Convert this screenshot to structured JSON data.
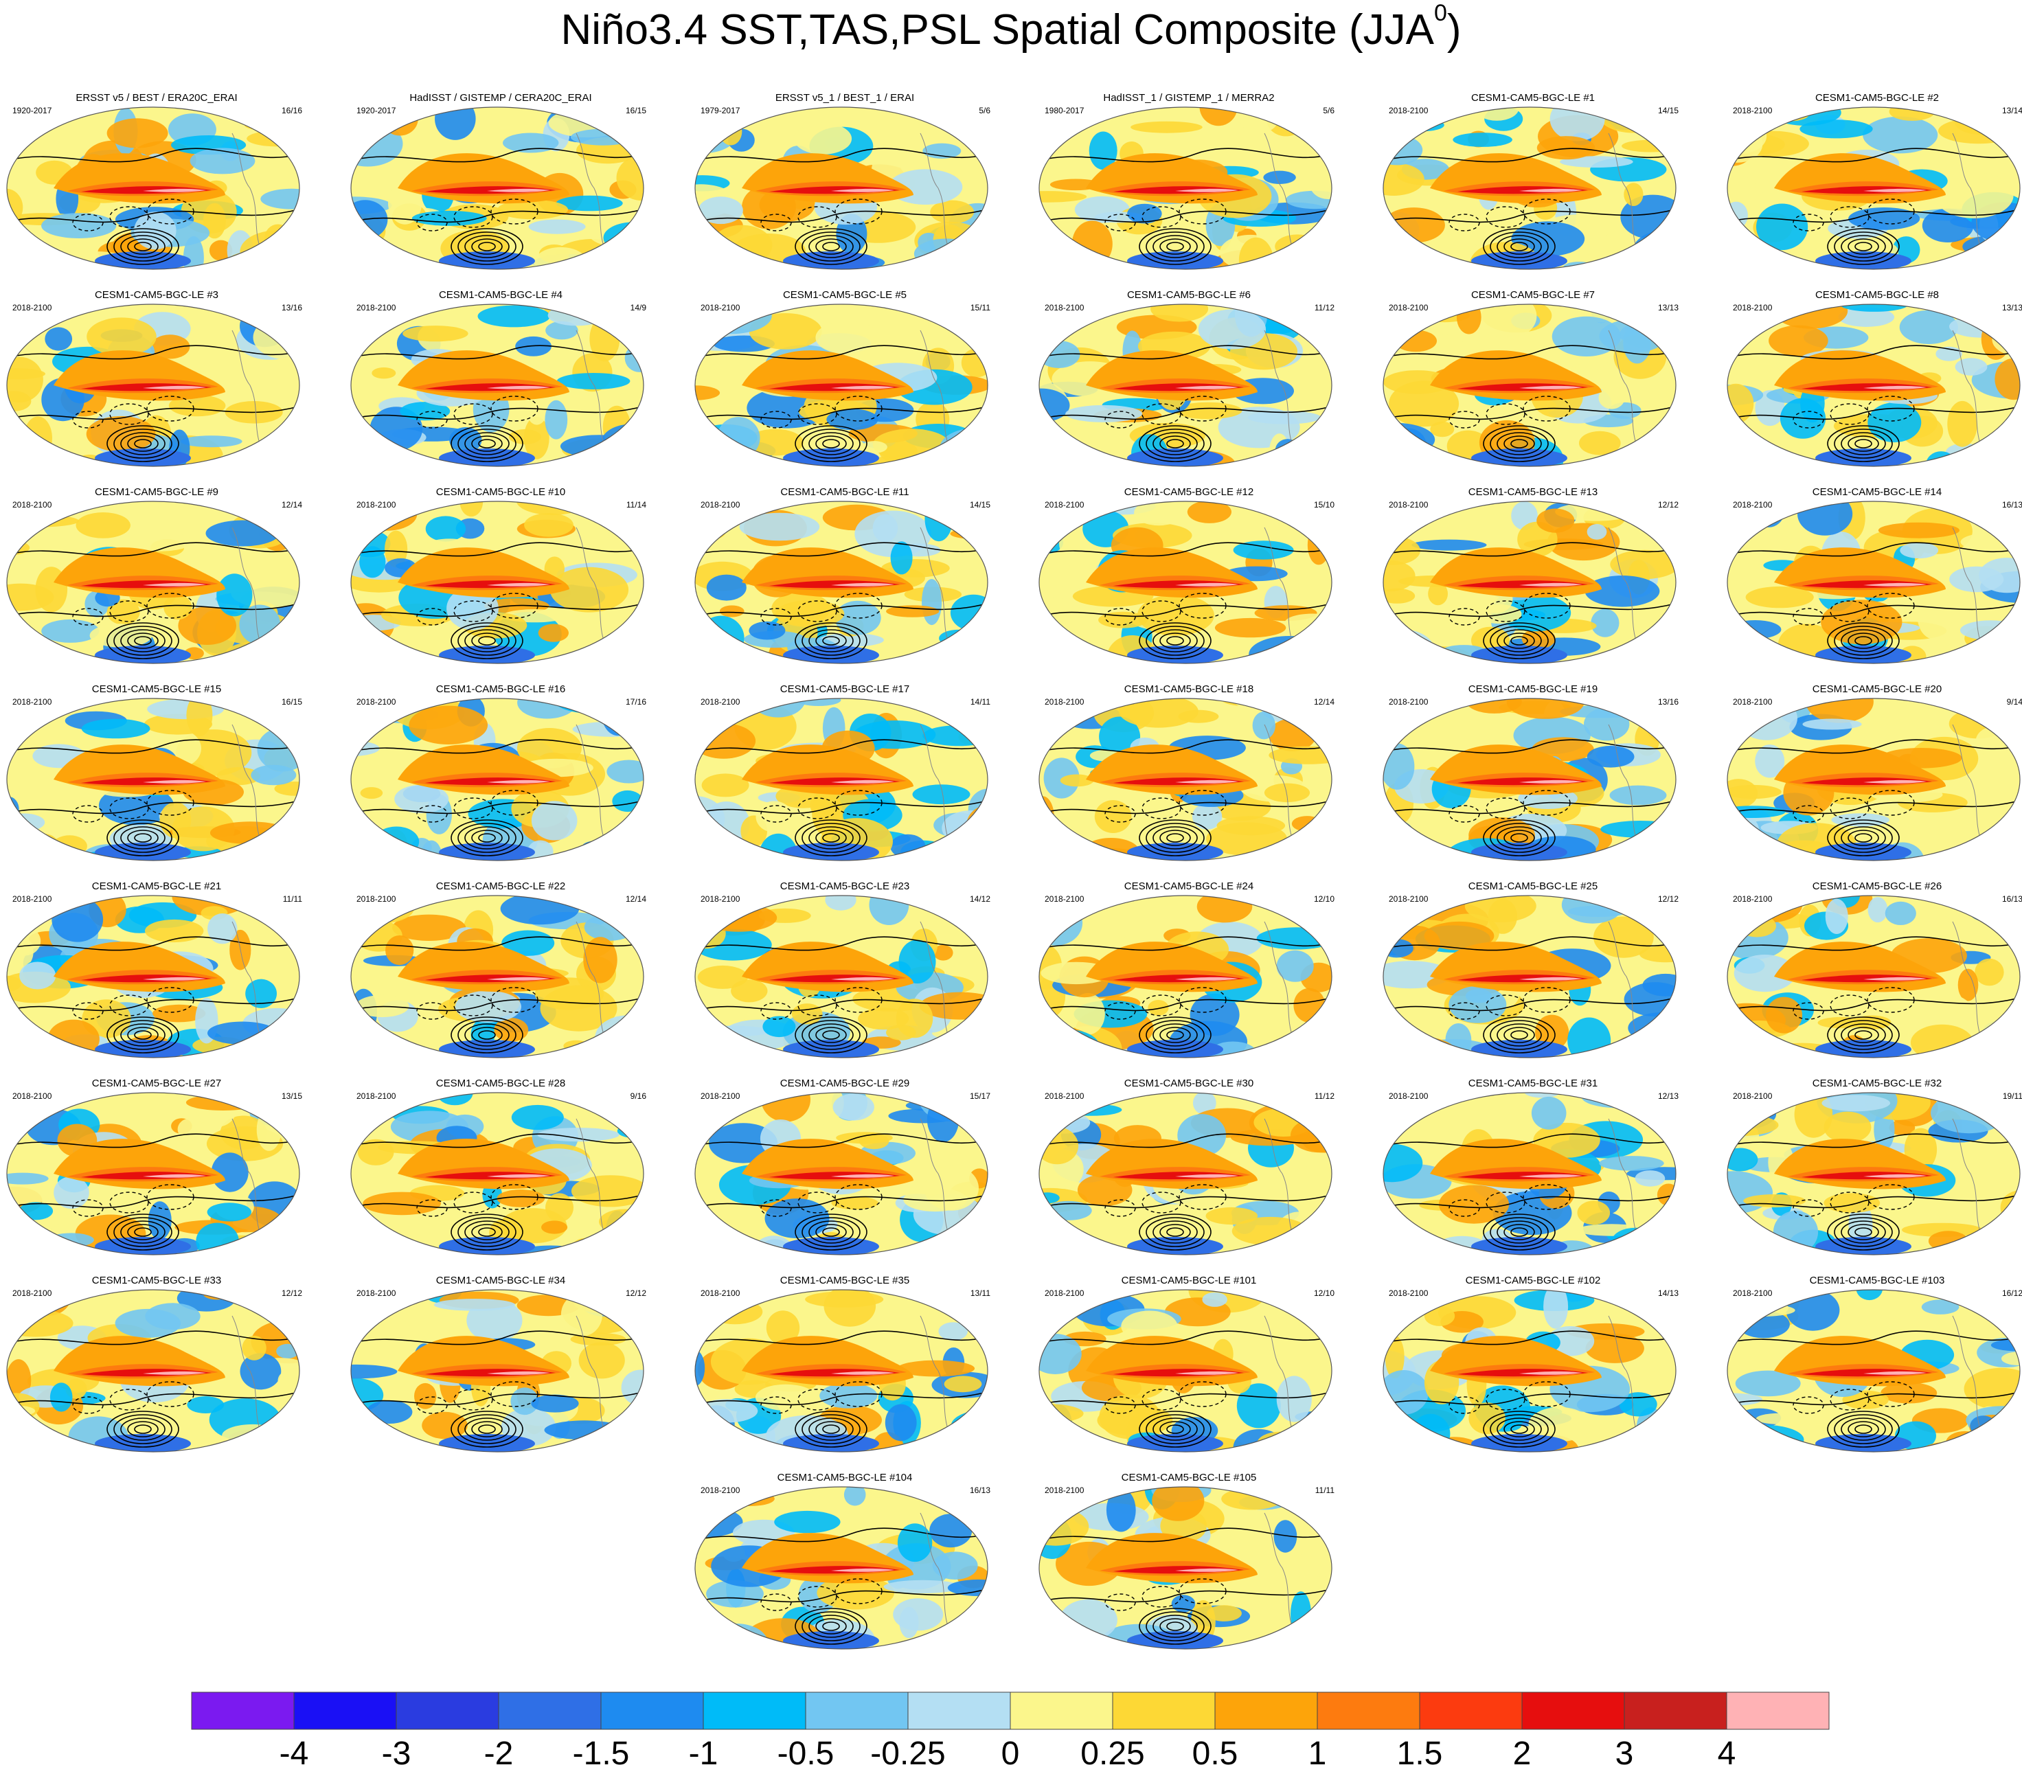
{
  "title": {
    "prefix": "Niño3.4 SST,TAS,PSL Spatial Composite (JJA",
    "superscript": "0",
    "suffix": ")"
  },
  "chart_data": {
    "type": "heatmap",
    "description_variables": [
      "SST",
      "TAS",
      "PSL"
    ],
    "colorbar": {
      "levels": [
        "-4",
        "-3",
        "-2",
        "-1.5",
        "-1",
        "-0.5",
        "-0.25",
        "0",
        "0.25",
        "0.5",
        "1",
        "1.5",
        "2",
        "3",
        "4"
      ],
      "colors": [
        "#7B1AF0",
        "#1A10F5",
        "#2A3CE0",
        "#2F6FE6",
        "#1E8BF0",
        "#00BBF8",
        "#72C6F2",
        "#B4DFF3",
        "#FBF68C",
        "#FDD835",
        "#FDA40A",
        "#FD7B0F",
        "#FC3B0F",
        "#E60E0E",
        "#C8201E",
        "#FFB2B5"
      ]
    },
    "panels": [
      {
        "title": "ERSST v5 / BEST / ERA20C_ERAI",
        "period": "1920-2017",
        "count": "16/16"
      },
      {
        "title": "HadISST / GISTEMP / CERA20C_ERAI",
        "period": "1920-2017",
        "count": "16/15"
      },
      {
        "title": "ERSST v5_1 / BEST_1 / ERAI",
        "period": "1979-2017",
        "count": "5/6"
      },
      {
        "title": "HadISST_1 / GISTEMP_1 / MERRA2",
        "period": "1980-2017",
        "count": "5/6"
      },
      {
        "title": "CESM1-CAM5-BGC-LE #1",
        "period": "2018-2100",
        "count": "14/15"
      },
      {
        "title": "CESM1-CAM5-BGC-LE #2",
        "period": "2018-2100",
        "count": "13/14"
      },
      {
        "title": "CESM1-CAM5-BGC-LE #3",
        "period": "2018-2100",
        "count": "13/16"
      },
      {
        "title": "CESM1-CAM5-BGC-LE #4",
        "period": "2018-2100",
        "count": "14/9"
      },
      {
        "title": "CESM1-CAM5-BGC-LE #5",
        "period": "2018-2100",
        "count": "15/11"
      },
      {
        "title": "CESM1-CAM5-BGC-LE #6",
        "period": "2018-2100",
        "count": "11/12"
      },
      {
        "title": "CESM1-CAM5-BGC-LE #7",
        "period": "2018-2100",
        "count": "13/13"
      },
      {
        "title": "CESM1-CAM5-BGC-LE #8",
        "period": "2018-2100",
        "count": "13/13"
      },
      {
        "title": "CESM1-CAM5-BGC-LE #9",
        "period": "2018-2100",
        "count": "12/14"
      },
      {
        "title": "CESM1-CAM5-BGC-LE #10",
        "period": "2018-2100",
        "count": "11/14"
      },
      {
        "title": "CESM1-CAM5-BGC-LE #11",
        "period": "2018-2100",
        "count": "14/15"
      },
      {
        "title": "CESM1-CAM5-BGC-LE #12",
        "period": "2018-2100",
        "count": "15/10"
      },
      {
        "title": "CESM1-CAM5-BGC-LE #13",
        "period": "2018-2100",
        "count": "12/12"
      },
      {
        "title": "CESM1-CAM5-BGC-LE #14",
        "period": "2018-2100",
        "count": "16/13"
      },
      {
        "title": "CESM1-CAM5-BGC-LE #15",
        "period": "2018-2100",
        "count": "16/15"
      },
      {
        "title": "CESM1-CAM5-BGC-LE #16",
        "period": "2018-2100",
        "count": "17/16"
      },
      {
        "title": "CESM1-CAM5-BGC-LE #17",
        "period": "2018-2100",
        "count": "14/11"
      },
      {
        "title": "CESM1-CAM5-BGC-LE #18",
        "period": "2018-2100",
        "count": "12/14"
      },
      {
        "title": "CESM1-CAM5-BGC-LE #19",
        "period": "2018-2100",
        "count": "13/16"
      },
      {
        "title": "CESM1-CAM5-BGC-LE #20",
        "period": "2018-2100",
        "count": "9/14"
      },
      {
        "title": "CESM1-CAM5-BGC-LE #21",
        "period": "2018-2100",
        "count": "11/11"
      },
      {
        "title": "CESM1-CAM5-BGC-LE #22",
        "period": "2018-2100",
        "count": "12/14"
      },
      {
        "title": "CESM1-CAM5-BGC-LE #23",
        "period": "2018-2100",
        "count": "14/12"
      },
      {
        "title": "CESM1-CAM5-BGC-LE #24",
        "period": "2018-2100",
        "count": "12/10"
      },
      {
        "title": "CESM1-CAM5-BGC-LE #25",
        "period": "2018-2100",
        "count": "12/12"
      },
      {
        "title": "CESM1-CAM5-BGC-LE #26",
        "period": "2018-2100",
        "count": "16/13"
      },
      {
        "title": "CESM1-CAM5-BGC-LE #27",
        "period": "2018-2100",
        "count": "13/15"
      },
      {
        "title": "CESM1-CAM5-BGC-LE #28",
        "period": "2018-2100",
        "count": "9/16"
      },
      {
        "title": "CESM1-CAM5-BGC-LE #29",
        "period": "2018-2100",
        "count": "15/17"
      },
      {
        "title": "CESM1-CAM5-BGC-LE #30",
        "period": "2018-2100",
        "count": "11/12"
      },
      {
        "title": "CESM1-CAM5-BGC-LE #31",
        "period": "2018-2100",
        "count": "12/13"
      },
      {
        "title": "CESM1-CAM5-BGC-LE #32",
        "period": "2018-2100",
        "count": "19/11"
      },
      {
        "title": "CESM1-CAM5-BGC-LE #33",
        "period": "2018-2100",
        "count": "12/12"
      },
      {
        "title": "CESM1-CAM5-BGC-LE #34",
        "period": "2018-2100",
        "count": "12/12"
      },
      {
        "title": "CESM1-CAM5-BGC-LE #35",
        "period": "2018-2100",
        "count": "13/11"
      },
      {
        "title": "CESM1-CAM5-BGC-LE #101",
        "period": "2018-2100",
        "count": "12/10"
      },
      {
        "title": "CESM1-CAM5-BGC-LE #102",
        "period": "2018-2100",
        "count": "14/13"
      },
      {
        "title": "CESM1-CAM5-BGC-LE #103",
        "period": "2018-2100",
        "count": "16/12"
      },
      {
        "title": "CESM1-CAM5-BGC-LE #104",
        "period": "2018-2100",
        "count": "16/13"
      },
      {
        "title": "CESM1-CAM5-BGC-LE #105",
        "period": "2018-2100",
        "count": "11/11"
      }
    ]
  }
}
